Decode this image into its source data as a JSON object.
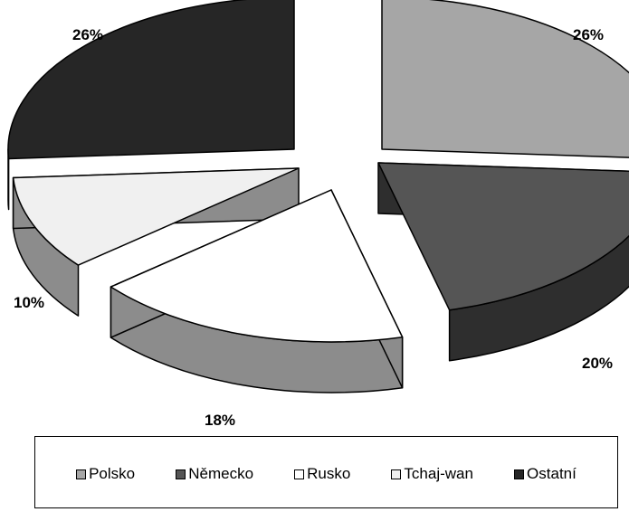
{
  "chart_data": {
    "type": "pie",
    "style": "3d-exploded",
    "categories": [
      "Polsko",
      "Německo",
      "Rusko",
      "Tchaj-wan",
      "Ostatní"
    ],
    "values": [
      26,
      20,
      18,
      10,
      26
    ],
    "labels": [
      "26%",
      "20%",
      "18%",
      "10%",
      "26%"
    ],
    "colors": [
      "#a6a6a6",
      "#555555",
      "#ffffff",
      "#f0f0f0",
      "#262626"
    ],
    "side_colors": [
      "#555555",
      "#2e2e2e",
      "#8c8c8c",
      "#8c8c8c",
      "#0f0f0f"
    ],
    "legend_position": "bottom"
  }
}
